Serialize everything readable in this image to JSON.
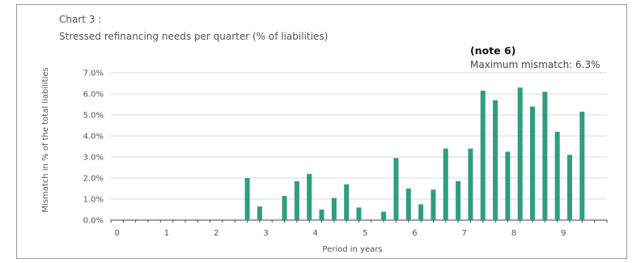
{
  "title_line1": "Chart 3 :",
  "title_line2": "Stressed refinancing needs per quarter  (% of liabilities)",
  "annotation_note": "(note 6)",
  "annotation_max": "Maximum mismatch: 6.3%",
  "chart_data": {
    "type": "bar",
    "title": "Stressed refinancing needs per quarter  (% of liabilities)",
    "xlabel": "Period in years",
    "ylabel": "Mismatch in % of the total liabilities",
    "x_tick_labels": [
      "0",
      "1",
      "2",
      "3",
      "4",
      "5",
      "6",
      "7",
      "8",
      "9"
    ],
    "y_tick_labels": [
      "0.0%",
      "1.0%",
      "2.0%",
      "3.0%",
      "4.0%",
      "5.0%",
      "6.0%",
      "7.0%"
    ],
    "ylim": [
      0,
      7
    ],
    "xlim": [
      -0.125,
      9.875
    ],
    "grid": "horizontal",
    "color": "#2e9e7e",
    "x": [
      0.125,
      0.375,
      0.625,
      0.875,
      1.125,
      1.375,
      1.625,
      1.875,
      2.125,
      2.375,
      2.625,
      2.875,
      3.125,
      3.375,
      3.625,
      3.875,
      4.125,
      4.375,
      4.625,
      4.875,
      5.125,
      5.375,
      5.625,
      5.875,
      6.125,
      6.375,
      6.625,
      6.875,
      7.125,
      7.375,
      7.625,
      7.875,
      8.125,
      8.375,
      8.625,
      8.875,
      9.125,
      9.375,
      9.625
    ],
    "values": [
      0,
      0,
      0,
      0,
      0,
      0,
      0,
      0,
      0,
      0,
      2.0,
      0.65,
      0,
      1.15,
      1.85,
      2.2,
      0.5,
      1.05,
      1.7,
      0.6,
      0,
      0.4,
      2.95,
      1.5,
      0.75,
      1.45,
      3.4,
      1.85,
      3.4,
      6.15,
      5.7,
      3.25,
      6.3,
      5.4,
      6.1,
      4.2,
      3.1,
      5.15,
      0
    ]
  }
}
